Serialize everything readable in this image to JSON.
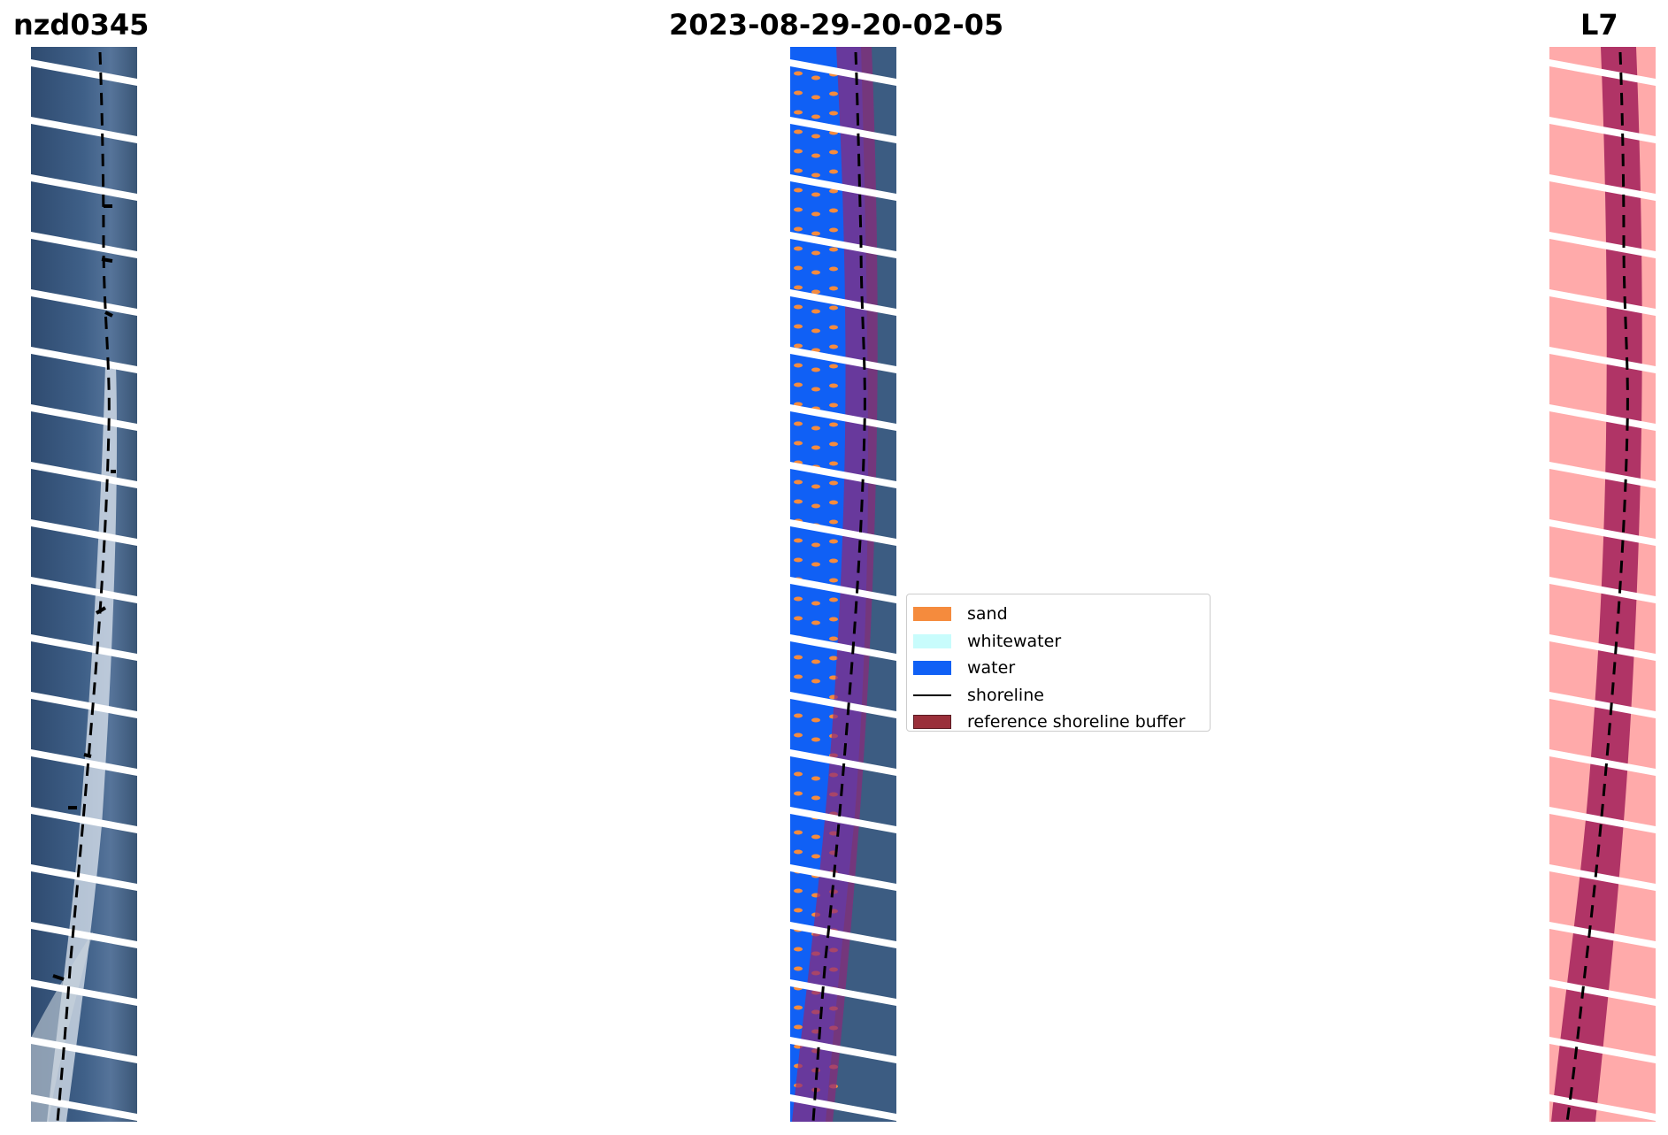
{
  "titles": {
    "left": "nzd0345",
    "center": "2023-08-29-20-02-05",
    "right": "L7"
  },
  "legend": {
    "items": [
      {
        "label": "sand",
        "color": "#f58b3d",
        "type": "patch"
      },
      {
        "label": "whitewater",
        "color": "#c8fcfc",
        "type": "patch"
      },
      {
        "label": "water",
        "color": "#1060f5",
        "type": "patch"
      },
      {
        "label": "shoreline",
        "color": "#000000",
        "type": "line"
      },
      {
        "label": "reference shoreline buffer",
        "color": "#9a2f3a",
        "type": "patch"
      }
    ]
  },
  "colors": {
    "satellite": "#3b5a86",
    "water_class": "#1060f5",
    "sand_class": "#f58b3d",
    "buffer_overlay": "#8b2a7a",
    "buffer_mask": "#b03466",
    "mask_background": "#ffaaaa",
    "shoreline": "#000000",
    "gap_stripes": "#ffffff"
  }
}
